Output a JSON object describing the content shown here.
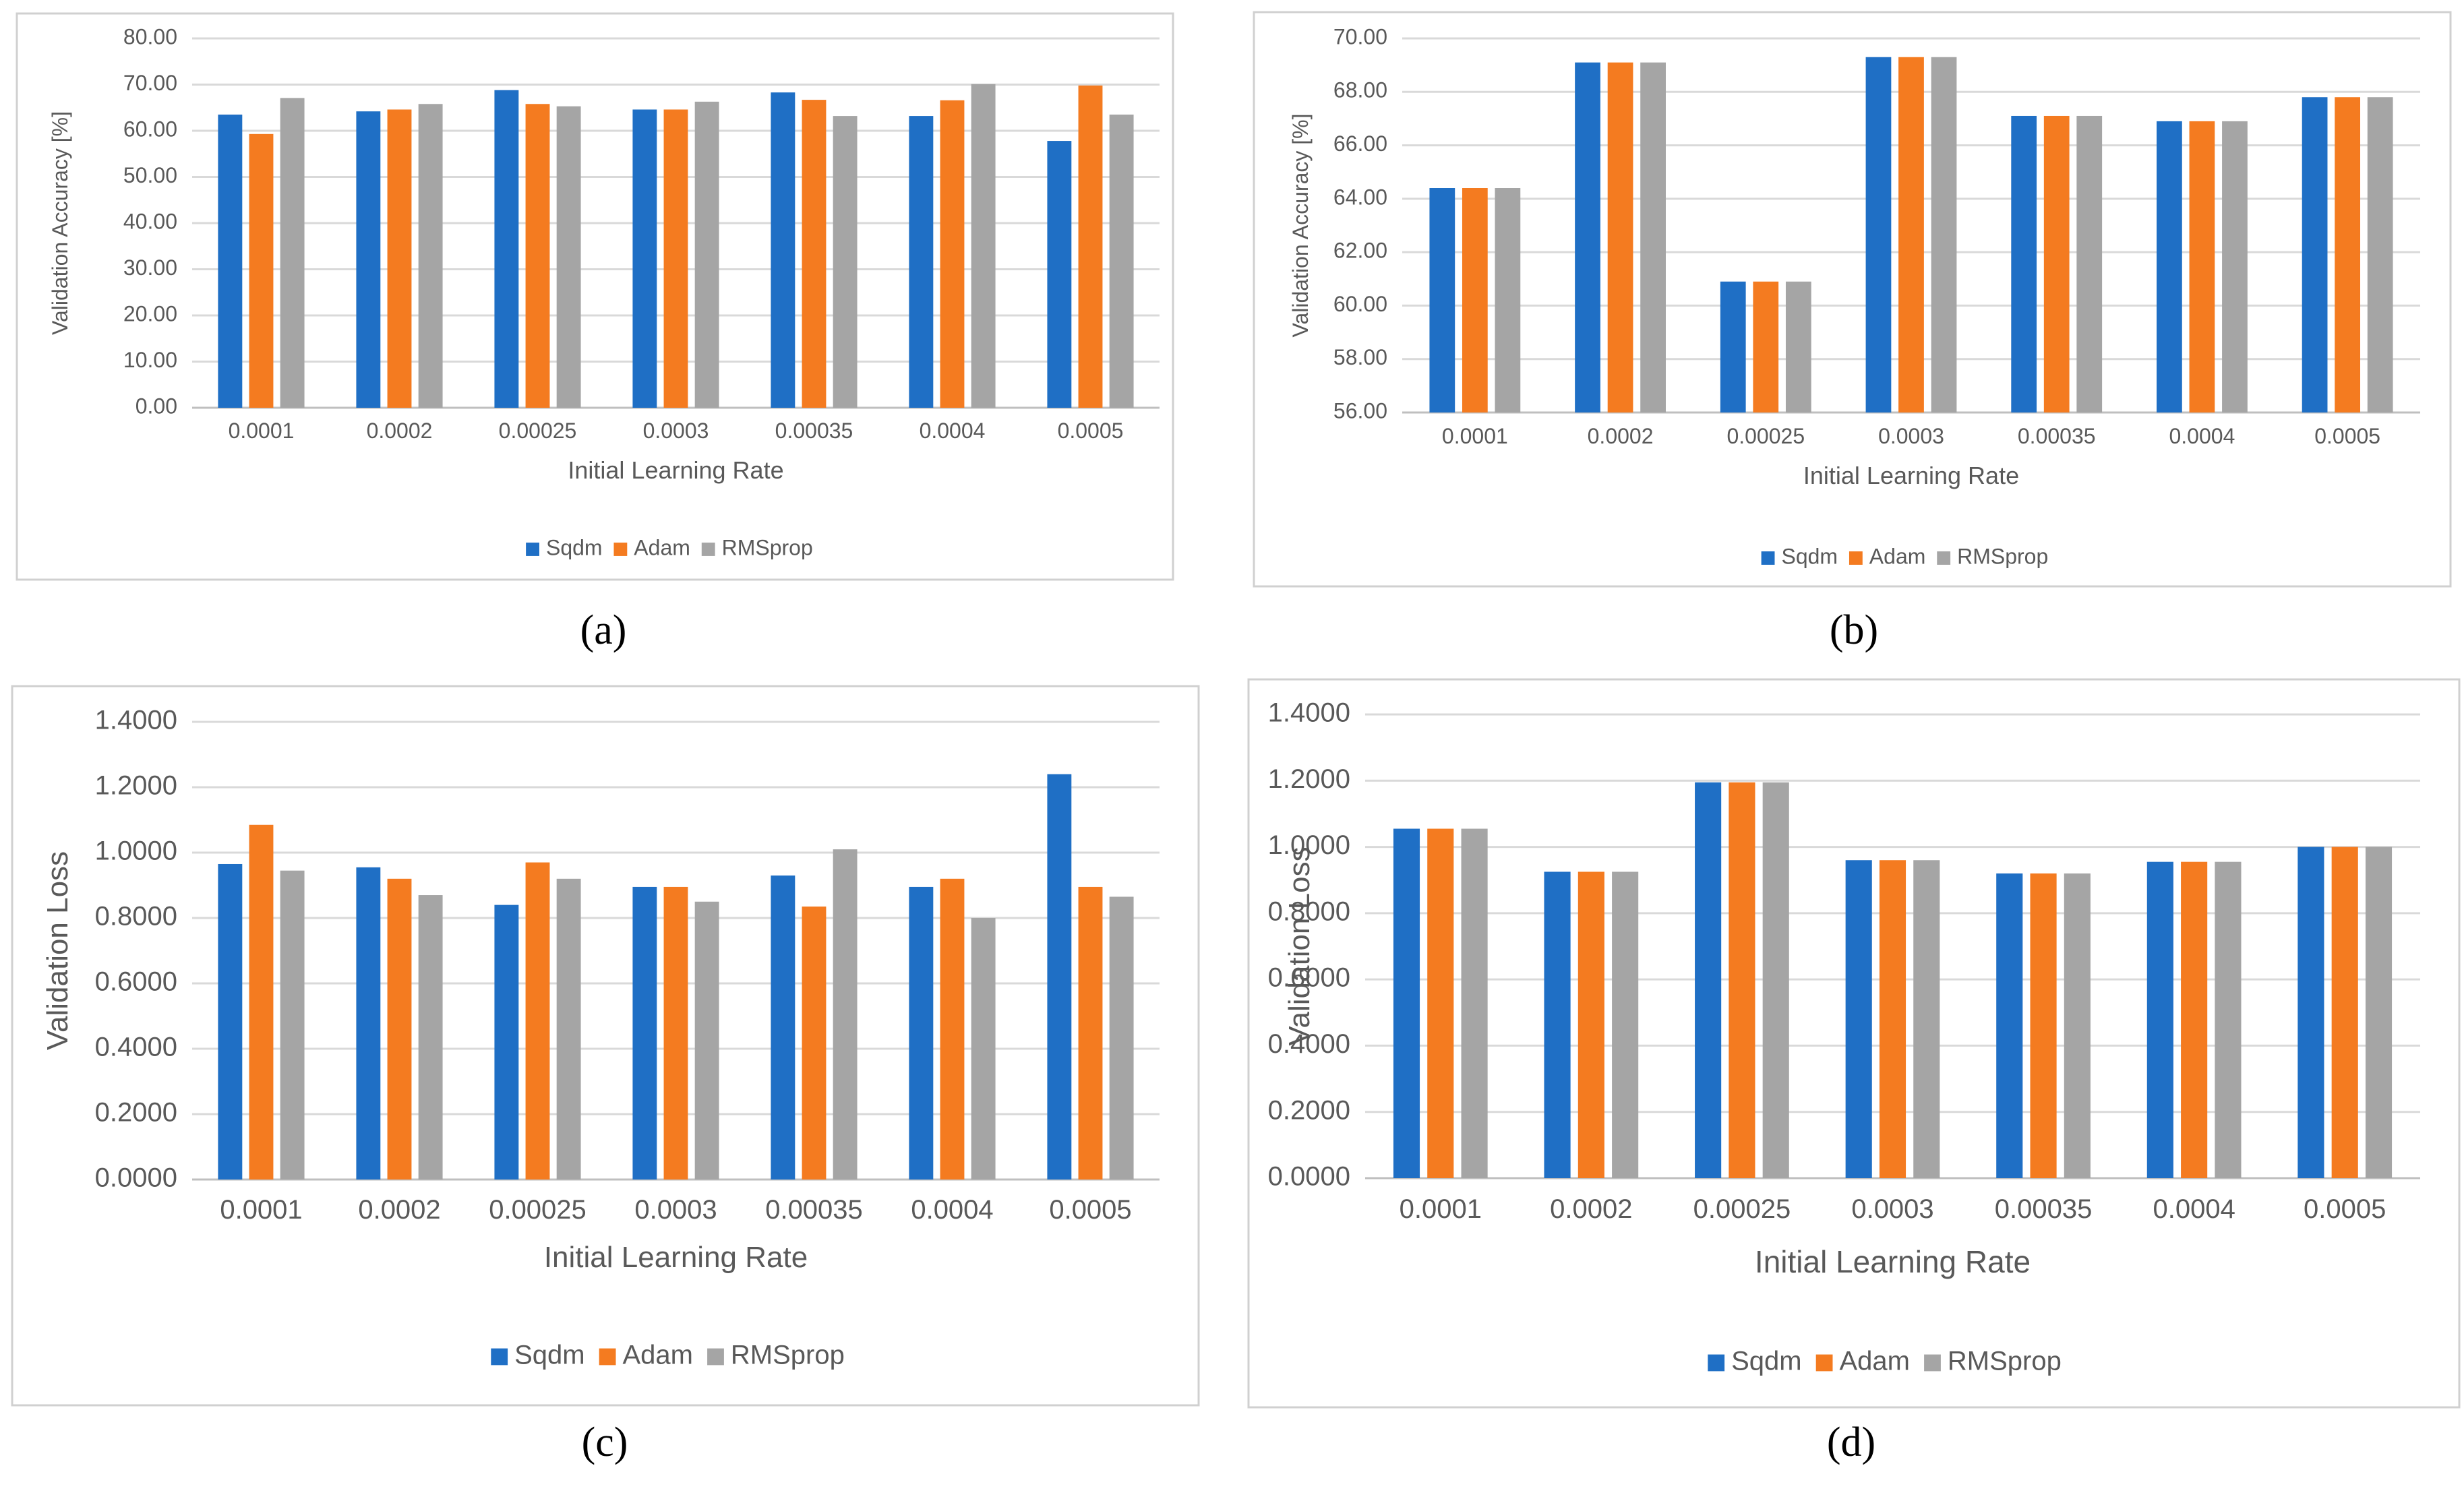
{
  "colors": {
    "sqdm": "#1f6fc5",
    "adam": "#f47b20",
    "rmsprop": "#a5a5a5",
    "grid": "#d9d9d9",
    "axis": "#bfbfbf",
    "text": "#595959",
    "frame": "#d0d0d0"
  },
  "chart_data": [
    {
      "type": "bar",
      "caption": "(a)",
      "title": "",
      "xlabel": "Initial Learning Rate",
      "ylabel": "Validation Accuracy [%]",
      "ylim": [
        0,
        80
      ],
      "yticks": [
        "0.00",
        "10.00",
        "20.00",
        "30.00",
        "40.00",
        "50.00",
        "60.00",
        "70.00",
        "80.00"
      ],
      "categories": [
        "0.0001",
        "0.0002",
        "0.00025",
        "0.0003",
        "0.00035",
        "0.0004",
        "0.0005"
      ],
      "legend_position": "bottom",
      "series": [
        {
          "name": "Sqdm",
          "color_key": "sqdm",
          "values": [
            63.5,
            64.2,
            68.8,
            64.6,
            68.3,
            63.2,
            57.8
          ]
        },
        {
          "name": "Adam",
          "color_key": "adam",
          "values": [
            59.3,
            64.6,
            65.8,
            64.6,
            66.7,
            66.6,
            69.8
          ]
        },
        {
          "name": "RMSprop",
          "color_key": "rmsprop",
          "values": [
            67.1,
            65.8,
            65.3,
            66.3,
            63.2,
            70.1,
            63.5
          ]
        }
      ]
    },
    {
      "type": "bar",
      "caption": "(b)",
      "title": "",
      "xlabel": "Initial Learning Rate",
      "ylabel": "Validation Accuracy [%]",
      "ylim": [
        56,
        70
      ],
      "yticks": [
        "56.00",
        "58.00",
        "60.00",
        "62.00",
        "64.00",
        "66.00",
        "68.00",
        "70.00"
      ],
      "categories": [
        "0.0001",
        "0.0002",
        "0.00025",
        "0.0003",
        "0.00035",
        "0.0004",
        "0.0005"
      ],
      "legend_position": "bottom",
      "series": [
        {
          "name": "Sqdm",
          "color_key": "sqdm",
          "values": [
            64.4,
            69.1,
            60.9,
            69.3,
            67.1,
            66.9,
            67.8
          ]
        },
        {
          "name": "Adam",
          "color_key": "adam",
          "values": [
            64.4,
            69.1,
            60.9,
            69.3,
            67.1,
            66.9,
            67.8
          ]
        },
        {
          "name": "RMSprop",
          "color_key": "rmsprop",
          "values": [
            64.4,
            69.1,
            60.9,
            69.3,
            67.1,
            66.9,
            67.8
          ]
        }
      ]
    },
    {
      "type": "bar",
      "caption": "(c)",
      "title": "",
      "xlabel": "Initial Learning Rate",
      "ylabel": "Validation Loss",
      "ylim": [
        0,
        1.4
      ],
      "yticks": [
        "0.0000",
        "0.2000",
        "0.4000",
        "0.6000",
        "0.8000",
        "1.0000",
        "1.2000",
        "1.4000"
      ],
      "categories": [
        "0.0001",
        "0.0002",
        "0.00025",
        "0.0003",
        "0.00035",
        "0.0004",
        "0.0005"
      ],
      "legend_position": "bottom",
      "series": [
        {
          "name": "Sqdm",
          "color_key": "sqdm",
          "values": [
            0.965,
            0.955,
            0.84,
            0.895,
            0.93,
            0.895,
            1.24
          ]
        },
        {
          "name": "Adam",
          "color_key": "adam",
          "values": [
            1.085,
            0.92,
            0.97,
            0.895,
            0.835,
            0.92,
            0.895
          ]
        },
        {
          "name": "RMSprop",
          "color_key": "rmsprop",
          "values": [
            0.945,
            0.87,
            0.92,
            0.85,
            1.01,
            0.8,
            0.865
          ]
        }
      ]
    },
    {
      "type": "bar",
      "caption": "(d)",
      "title": "",
      "xlabel": "Initial Learning Rate",
      "ylabel": "Validation Loss",
      "ylim": [
        0,
        1.4
      ],
      "yticks": [
        "0.0000",
        "0.2000",
        "0.4000",
        "0.6000",
        "0.8000",
        "1.0000",
        "1.2000",
        "1.4000"
      ],
      "categories": [
        "0.0001",
        "0.0002",
        "0.00025",
        "0.0003",
        "0.00035",
        "0.0004",
        "0.0005"
      ],
      "legend_position": "bottom",
      "series": [
        {
          "name": "Sqdm",
          "color_key": "sqdm",
          "values": [
            1.055,
            0.925,
            1.195,
            0.96,
            0.92,
            0.955,
            1.0
          ]
        },
        {
          "name": "Adam",
          "color_key": "adam",
          "values": [
            1.055,
            0.925,
            1.195,
            0.96,
            0.92,
            0.955,
            1.0
          ]
        },
        {
          "name": "RMSprop",
          "color_key": "rmsprop",
          "values": [
            1.055,
            0.925,
            1.195,
            0.96,
            0.92,
            0.955,
            1.0
          ]
        }
      ]
    }
  ]
}
